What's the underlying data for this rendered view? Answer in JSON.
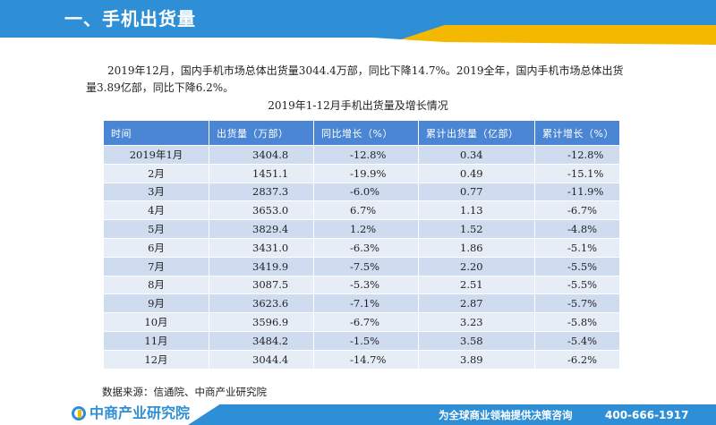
{
  "header": {
    "title": "一、手机出货量"
  },
  "body": {
    "paragraph": "2019年12月，国内手机市场总体出货量3044.4万部，同比下降14.7%。2019全年，国内手机市场总体出货量3.89亿部，同比下降6.2%。",
    "table_title": "2019年1-12月手机出货量及增长情况"
  },
  "table": {
    "headers": [
      "时间",
      "出货量（万部）",
      "同比增长（%）",
      "累计出货量（亿部）",
      "累计增长（%）"
    ],
    "rows": [
      [
        "2019年1月",
        "3404.8",
        "-12.8%",
        "0.34",
        "-12.8%"
      ],
      [
        "2月",
        "1451.1",
        "-19.9%",
        "0.49",
        "-15.1%"
      ],
      [
        "3月",
        "2837.3",
        "-6.0%",
        "0.77",
        "-11.9%"
      ],
      [
        "4月",
        "3653.0",
        "6.7%",
        "1.13",
        "-6.7%"
      ],
      [
        "5月",
        "3829.4",
        "1.2%",
        "1.52",
        "-4.8%"
      ],
      [
        "6月",
        "3431.0",
        "-6.3%",
        "1.86",
        "-5.1%"
      ],
      [
        "7月",
        "3419.9",
        "-7.5%",
        "2.20",
        "-5.5%"
      ],
      [
        "8月",
        "3087.5",
        "-5.3%",
        "2.51",
        "-5.5%"
      ],
      [
        "9月",
        "3623.6",
        "-7.1%",
        "2.87",
        "-5.7%"
      ],
      [
        "10月",
        "3596.9",
        "-6.7%",
        "3.23",
        "-5.8%"
      ],
      [
        "11月",
        "3484.2",
        "-1.5%",
        "3.58",
        "-5.4%"
      ],
      [
        "12月",
        "3044.4",
        "-14.7%",
        "3.89",
        "-6.2%"
      ]
    ]
  },
  "source": "数据来源：信通院、中商产业研究院",
  "footer": {
    "logo_text": "中商产业研究院",
    "slogan": "为全球商业领袖提供决策咨询",
    "phone": "400-666-1917"
  },
  "colors": {
    "header_blue": "#2f8fd6",
    "accent_yellow": "#f5b800",
    "table_header": "#4a86d4",
    "row_dark": "#cfdcf0",
    "row_light": "#e6edf7"
  }
}
